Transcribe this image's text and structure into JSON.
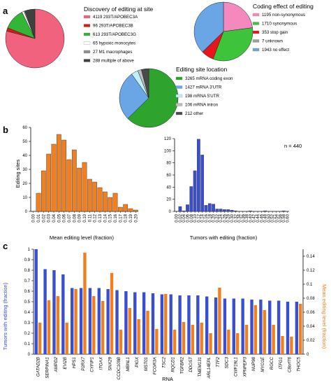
{
  "panel_labels": {
    "a": "a",
    "b": "b",
    "c": "c"
  },
  "chart_data": [
    {
      "type": "pie",
      "title": "Discovery of editing at site",
      "slices": [
        {
          "label": "4119 293T/APOBEC3A",
          "value": 4119,
          "color": "#f0627d"
        },
        {
          "label": "96 293T/APOBEC3B",
          "value": 96,
          "color": "#d7191c"
        },
        {
          "label": "613 293T/APOBEC3G",
          "value": 613,
          "color": "#33b536"
        },
        {
          "label": "65 hypoxic monocytes",
          "value": 65,
          "color": "#ffffff"
        },
        {
          "label": "27 M1 macrophages",
          "value": 27,
          "color": "#8f8f8f"
        },
        {
          "label": "288 multiple of above",
          "value": 288,
          "color": "#404040"
        }
      ]
    },
    {
      "type": "pie",
      "title": "Coding effect of editing",
      "slices": [
        {
          "label": "1195 non-synonymous",
          "value": 1195,
          "color": "#f589bd"
        },
        {
          "label": "1710 synonymous",
          "value": 1710,
          "color": "#3ec43a"
        },
        {
          "label": "353 stop gain",
          "value": 353,
          "color": "#e8151b"
        },
        {
          "label": "7 unknown",
          "value": 7,
          "color": "#9e9e9e"
        },
        {
          "label": "1943 no effect",
          "value": 1943,
          "color": "#6aa5e6"
        }
      ]
    },
    {
      "type": "pie",
      "title": "Editing site location",
      "slices": [
        {
          "label": "3265 mRNA coding exon",
          "value": 3265,
          "color": "#2ea32e"
        },
        {
          "label": "1427 mRNA 3'UTR",
          "value": 1427,
          "color": "#6aa5e6"
        },
        {
          "label": "198 mRNA 5'UTR",
          "value": 198,
          "color": "#bff0fa"
        },
        {
          "label": "106 mRNA intron",
          "value": 106,
          "color": "#bdbdbd"
        },
        {
          "label": "212 other",
          "value": 212,
          "color": "#4a4a4a"
        }
      ]
    },
    {
      "type": "bar",
      "ylabel": "Editing sites",
      "xlabel": "Mean editing level (fraction)",
      "ylim": [
        0,
        60
      ],
      "yticks": [
        0,
        10,
        20,
        30,
        40,
        50,
        60
      ],
      "color": "#f07f1f",
      "categories": [
        "0.00",
        "0.01",
        "0.02",
        "0.03",
        "0.04",
        "0.05",
        "0.06",
        "0.07",
        "0.08",
        "0.09",
        "0.10",
        "0.11",
        "0.12",
        "0.13",
        "0.14",
        "0.15",
        "0.16",
        "0.17",
        "0.18",
        "0.19",
        "0.20"
      ],
      "values": [
        0,
        13,
        29,
        41,
        48,
        55,
        51,
        37,
        44,
        31,
        35,
        23,
        21,
        17,
        14,
        10,
        13,
        3,
        5,
        2,
        1
      ]
    },
    {
      "type": "bar",
      "annotation": "n = 440",
      "xlabel": "Tumors with editing (fraction)",
      "ylim": [
        0,
        120
      ],
      "yticks": [
        0,
        20,
        40,
        60,
        80,
        100,
        120
      ],
      "color": "#3a4fd0",
      "categories": [
        "0.00",
        "0.02",
        "0.04",
        "0.06",
        "0.08",
        "0.10",
        "0.12",
        "0.14",
        "0.16",
        "0.18",
        "0.20",
        "0.22",
        "0.24",
        "0.26",
        "0.28",
        "0.30",
        "0.32",
        "0.34",
        "0.36",
        "0.38",
        "0.40",
        "0.42",
        "0.44",
        "0.46",
        "0.48",
        "0.50",
        "0.52",
        "0.54",
        "0.56",
        "0.58",
        "0.60"
      ],
      "values": [
        0,
        8,
        1,
        11,
        41,
        67,
        119,
        93,
        10,
        13,
        12,
        4,
        4,
        3,
        3,
        2,
        1,
        0,
        0,
        0,
        1,
        0,
        0,
        0,
        1,
        0,
        0,
        0,
        0,
        1,
        0
      ]
    },
    {
      "type": "bar",
      "xlabel": "RNA",
      "ylabel": "Tumors with editing (fraction)",
      "y2label": "Mean editing level (fraction)",
      "ylim": [
        0,
        1.0
      ],
      "yticks": [
        0,
        0.1,
        0.2,
        0.3,
        0.4,
        0.5,
        0.6,
        0.7,
        0.8,
        0.9,
        1.0
      ],
      "y2lim": [
        0,
        0.15
      ],
      "y2ticks": [
        0,
        0.02,
        0.04,
        0.06,
        0.08,
        0.1,
        0.12,
        0.14
      ],
      "categories": [
        "GATAD2B",
        "SERPINA1",
        "AMPD2",
        "EVI2B",
        "HPS1",
        "P2RX7",
        "CYFIP1",
        "ITGAX",
        "SNX29",
        "CCDC109B",
        "MBNL1",
        "PIGX",
        "MST01",
        "FCGR3A",
        "TSC2",
        "RQCD1",
        "TGFBR2",
        "DDOST",
        "TMEM131",
        "ARL14EPL",
        "TTF2",
        "SDC3",
        "CWF19L1",
        "XPNPEP3",
        "NUP98",
        "MYO1E",
        "RGCC",
        "ITFG1",
        "C8orf76",
        "THOC5"
      ],
      "series": [
        {
          "name": "Tumors with editing (fraction)",
          "color": "#3a4fd0",
          "values": [
            1.0,
            0.81,
            0.8,
            0.76,
            0.63,
            0.63,
            0.63,
            0.63,
            0.62,
            0.61,
            0.6,
            0.59,
            0.59,
            0.58,
            0.57,
            0.57,
            0.56,
            0.56,
            0.56,
            0.55,
            0.54,
            0.53,
            0.53,
            0.53,
            0.52,
            0.52,
            0.51,
            0.51,
            0.5,
            0.5
          ]
        },
        {
          "name": "Mean editing level (fraction)",
          "color": "#f07f1f",
          "values": [
            0.045,
            0.077,
            0.083,
            0.045,
            0.093,
            0.145,
            0.083,
            0.076,
            0.116,
            0.035,
            0.066,
            0.05,
            0.062,
            0.036,
            0.086,
            0.035,
            0.046,
            0.042,
            0.045,
            0.03,
            0.095,
            0.035,
            0.03,
            0.042,
            0.07,
            0.063,
            0.042,
            0.026,
            0.025,
            0.072
          ]
        }
      ]
    }
  ]
}
